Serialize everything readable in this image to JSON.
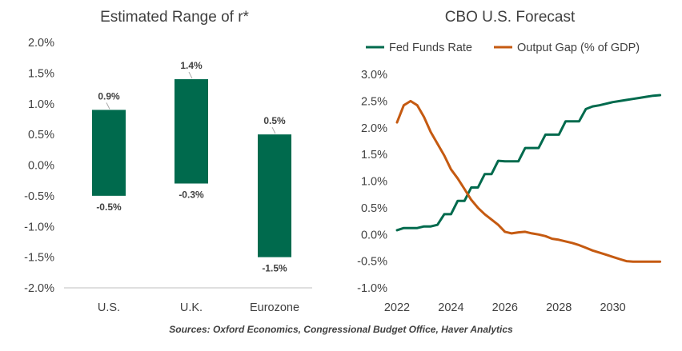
{
  "source_note": "Sources: Oxford Economics, Congressional Budget Office, Haver Analytics",
  "colors": {
    "green": "#006A4D",
    "orange": "#C55A11",
    "text": "#404040",
    "axis": "#bfbfbf"
  },
  "chart_data": [
    {
      "type": "bar",
      "title": "Estimated Range of r*",
      "categories": [
        "U.S.",
        "U.K.",
        "Eurozone"
      ],
      "ranges": [
        {
          "low": -0.5,
          "high": 0.9,
          "low_label": "-0.5%",
          "high_label": "0.9%"
        },
        {
          "low": -0.3,
          "high": 1.4,
          "low_label": "-0.3%",
          "high_label": "1.4%"
        },
        {
          "low": -1.5,
          "high": 0.5,
          "low_label": "-1.5%",
          "high_label": "0.5%"
        }
      ],
      "ylim": [
        -2.0,
        2.0
      ],
      "yticks": [
        2.0,
        1.5,
        1.0,
        0.5,
        0.0,
        -0.5,
        -1.0,
        -1.5,
        -2.0
      ],
      "ytick_labels": [
        "2.0%",
        "1.5%",
        "1.0%",
        "0.5%",
        "0.0%",
        "-0.5%",
        "-1.0%",
        "-1.5%",
        "-2.0%"
      ],
      "grid": false
    },
    {
      "type": "line",
      "title": "CBO U.S. Forecast",
      "legend_position": "top",
      "ylim": [
        -1.0,
        3.0
      ],
      "yticks": [
        3.0,
        2.5,
        2.0,
        1.5,
        1.0,
        0.5,
        0.0,
        -0.5,
        -1.0
      ],
      "ytick_labels": [
        "3.0%",
        "2.5%",
        "2.0%",
        "1.5%",
        "1.0%",
        "0.5%",
        "0.0%",
        "-0.5%",
        "-1.0%"
      ],
      "xlim": [
        2022.0,
        2032.0
      ],
      "xticks": [
        2022,
        2024,
        2026,
        2028,
        2030
      ],
      "xtick_labels": [
        "2022",
        "2024",
        "2026",
        "2028",
        "2030"
      ],
      "series": [
        {
          "name": "Fed Funds Rate",
          "color": "#006A4D",
          "x": [
            2022.0,
            2022.25,
            2022.5,
            2022.75,
            2023.0,
            2023.25,
            2023.5,
            2023.75,
            2024.0,
            2024.25,
            2024.5,
            2024.75,
            2025.0,
            2025.25,
            2025.5,
            2025.75,
            2026.0,
            2026.25,
            2026.5,
            2026.75,
            2027.0,
            2027.25,
            2027.5,
            2027.75,
            2028.0,
            2028.25,
            2028.5,
            2028.75,
            2029.0,
            2029.25,
            2029.5,
            2029.75,
            2030.0,
            2030.25,
            2030.5,
            2030.75,
            2031.0,
            2031.25,
            2031.5,
            2031.75
          ],
          "y": [
            0.08,
            0.12,
            0.12,
            0.12,
            0.15,
            0.15,
            0.18,
            0.38,
            0.38,
            0.63,
            0.63,
            0.88,
            0.88,
            1.13,
            1.13,
            1.38,
            1.37,
            1.37,
            1.37,
            1.62,
            1.62,
            1.62,
            1.87,
            1.87,
            1.87,
            2.12,
            2.12,
            2.12,
            2.35,
            2.4,
            2.42,
            2.45,
            2.48,
            2.5,
            2.52,
            2.54,
            2.56,
            2.58,
            2.6,
            2.61
          ]
        },
        {
          "name": "Output Gap (% of GDP)",
          "color": "#C55A11",
          "x": [
            2022.0,
            2022.25,
            2022.5,
            2022.75,
            2023.0,
            2023.25,
            2023.5,
            2023.75,
            2024.0,
            2024.25,
            2024.5,
            2024.75,
            2025.0,
            2025.25,
            2025.5,
            2025.75,
            2026.0,
            2026.25,
            2026.5,
            2026.75,
            2027.0,
            2027.25,
            2027.5,
            2027.75,
            2028.0,
            2028.25,
            2028.5,
            2028.75,
            2029.0,
            2029.25,
            2029.5,
            2029.75,
            2030.0,
            2030.25,
            2030.5,
            2030.75,
            2031.0,
            2031.25,
            2031.5,
            2031.75
          ],
          "y": [
            2.1,
            2.42,
            2.5,
            2.42,
            2.2,
            1.92,
            1.7,
            1.48,
            1.22,
            1.05,
            0.85,
            0.65,
            0.5,
            0.38,
            0.28,
            0.18,
            0.05,
            0.02,
            0.04,
            0.05,
            0.02,
            0.0,
            -0.03,
            -0.08,
            -0.1,
            -0.13,
            -0.16,
            -0.2,
            -0.25,
            -0.3,
            -0.34,
            -0.38,
            -0.42,
            -0.46,
            -0.5,
            -0.51,
            -0.51,
            -0.51,
            -0.51,
            -0.51
          ]
        }
      ],
      "grid": false
    }
  ]
}
